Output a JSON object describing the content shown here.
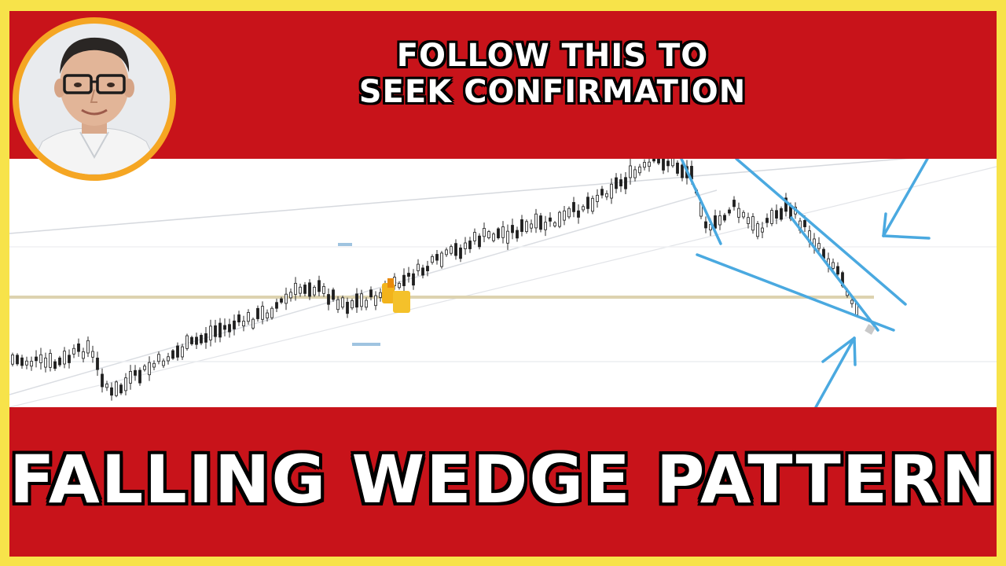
{
  "header": {
    "line1": "FOLLOW THIS TO",
    "line2": "SEEK CONFIRMATION"
  },
  "title": "FALLING WEDGE PATTERN",
  "icons": {
    "avatar": "presenter-portrait",
    "arrow_top": "arrow-icon",
    "arrow_bottom": "arrow-icon",
    "marker": "candle-highlight-icon"
  },
  "colors": {
    "frame": "#f7e34a",
    "banner": "#c8131a",
    "avatar_ring": "#f5a623",
    "annotation": "#4aa9e0",
    "text": "#ffffff"
  }
}
